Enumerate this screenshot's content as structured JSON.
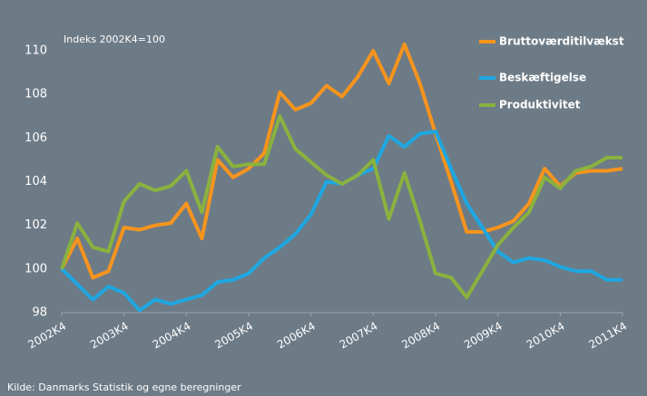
{
  "chart_data": {
    "type": "line",
    "annotation": "Indeks 2002K4=100",
    "source": "Kilde: Danmarks Statistik og egne beregninger",
    "categories": [
      "2002K4",
      null,
      null,
      null,
      "2003K4",
      null,
      null,
      null,
      "2004K4",
      null,
      null,
      null,
      "2005K4",
      null,
      null,
      null,
      "2006K4",
      null,
      null,
      null,
      "2007K4",
      null,
      null,
      null,
      "2008K4",
      null,
      null,
      null,
      "2009K4",
      null,
      null,
      null,
      "2010K4",
      null,
      null,
      null,
      "2011K4"
    ],
    "series": [
      {
        "name": "Bruttoværditilvækst",
        "color": "#f7941d",
        "values": [
          100.0,
          101.4,
          99.6,
          99.9,
          101.9,
          101.8,
          102.0,
          102.1,
          103.0,
          101.4,
          105.0,
          104.2,
          104.6,
          105.3,
          108.1,
          107.3,
          107.6,
          108.4,
          107.9,
          108.8,
          110.0,
          108.5,
          110.3,
          108.5,
          106.2,
          104.0,
          101.7,
          101.7,
          101.9,
          102.2,
          103.0,
          104.6,
          103.8,
          104.4,
          104.5,
          104.5,
          104.6
        ]
      },
      {
        "name": "Beskæftigelse",
        "color": "#1ea7e1",
        "values": [
          100.0,
          99.3,
          98.6,
          99.2,
          98.9,
          98.1,
          98.6,
          98.4,
          98.6,
          98.8,
          99.4,
          99.5,
          99.8,
          100.5,
          101.0,
          101.6,
          102.5,
          104.0,
          103.9,
          104.3,
          104.6,
          106.1,
          105.6,
          106.2,
          106.3,
          104.6,
          103.0,
          101.9,
          100.8,
          100.3,
          100.5,
          100.4,
          100.1,
          99.9,
          99.9,
          99.5,
          99.5
        ]
      },
      {
        "name": "Produktivitet",
        "color": "#8ab23f",
        "values": [
          100.0,
          102.1,
          101.0,
          100.8,
          103.1,
          103.9,
          103.6,
          103.8,
          104.5,
          102.6,
          105.6,
          104.7,
          104.8,
          104.8,
          107.0,
          105.5,
          104.9,
          104.3,
          103.9,
          104.3,
          105.0,
          102.3,
          104.4,
          102.2,
          99.8,
          99.6,
          98.7,
          99.9,
          101.1,
          101.9,
          102.6,
          104.2,
          103.7,
          104.5,
          104.7,
          105.1,
          105.1
        ]
      }
    ],
    "ylim": [
      98,
      111
    ],
    "yticks": [
      98,
      100,
      102,
      104,
      106,
      108,
      110
    ],
    "grid": false,
    "legend": "right"
  }
}
